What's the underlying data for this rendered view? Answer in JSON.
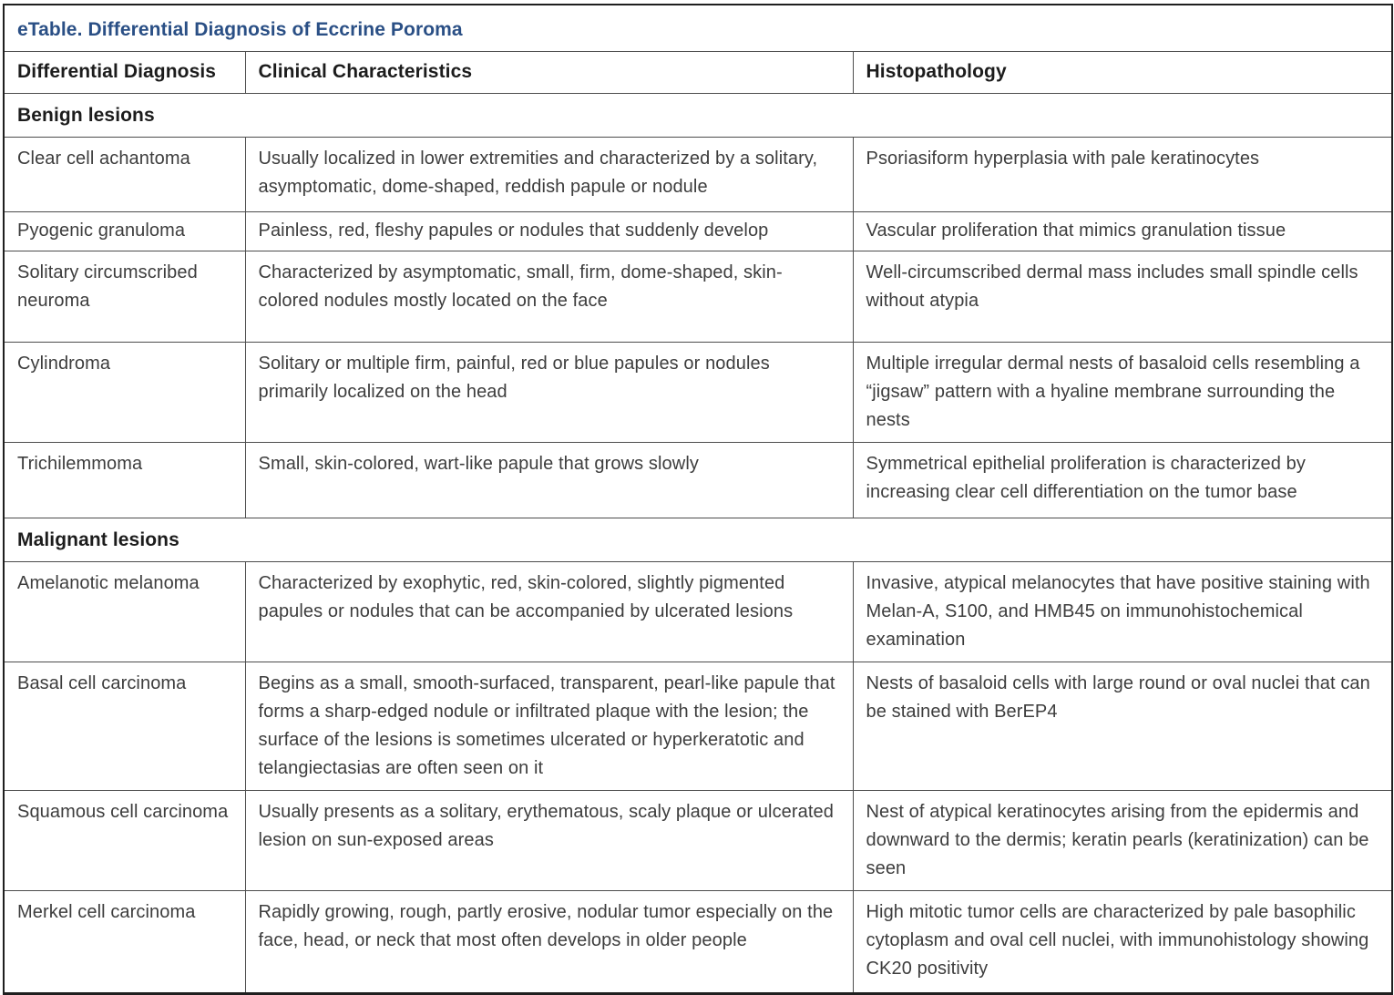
{
  "table": {
    "title": "eTable. Differential Diagnosis of Eccrine Poroma",
    "columns": {
      "diagnosis": "Differential Diagnosis",
      "clinical": "Clinical Characteristics",
      "histopathology": "Histopathology"
    },
    "sections": [
      {
        "header": "Benign lesions",
        "rows": [
          {
            "diagnosis": "Clear cell achantoma",
            "clinical": "Usually localized in lower extremities and characterized by a solitary, asymptomatic, dome-shaped, reddish papule or nodule",
            "histopathology": "Psoriasiform hyperplasia with pale keratinocytes"
          },
          {
            "diagnosis": "Pyogenic granuloma",
            "clinical": "Painless, red, fleshy papules or nodules that suddenly develop",
            "histopathology": "Vascular proliferation that mimics granulation tissue"
          },
          {
            "diagnosis": "Solitary circumscribed neuroma",
            "clinical": "Characterized by asymptomatic, small, firm, dome-shaped, skin-colored nodules mostly located on the face",
            "histopathology": "Well-circumscribed dermal mass includes small spindle cells without atypia"
          },
          {
            "diagnosis": "Cylindroma",
            "clinical": "Solitary or multiple firm, painful, red or blue papules or nodules primarily localized on the head",
            "histopathology": "Multiple irregular dermal nests of basaloid cells resembling a “jigsaw” pattern with a hyaline membrane surrounding the nests"
          },
          {
            "diagnosis": "Trichilemmoma",
            "clinical": "Small, skin-colored, wart-like papule that grows slowly",
            "histopathology": "Symmetrical epithelial proliferation is characterized by increasing clear cell differentiation on the tumor base"
          }
        ]
      },
      {
        "header": "Malignant lesions",
        "rows": [
          {
            "diagnosis": "Amelanotic melanoma",
            "clinical": "Characterized by exophytic, red, skin-colored, slightly pigmented papules or nodules that can be accompanied by ulcerated lesions",
            "histopathology": "Invasive, atypical melanocytes that have positive staining with Melan-A, S100, and HMB45 on immunohistochemical examination"
          },
          {
            "diagnosis": "Basal cell carcinoma",
            "clinical": "Begins as a small, smooth-surfaced, transparent, pearl-like papule that forms a sharp-edged nodule or infiltrated plaque with the lesion; the surface of the lesions is sometimes ulcerated or hyperkeratotic and telangiectasias are often seen on it",
            "histopathology": "Nests of basaloid cells with large round or oval nuclei that can be stained with BerEP4"
          },
          {
            "diagnosis": "Squamous cell carcinoma",
            "clinical": "Usually presents as a solitary, erythematous, scaly plaque or ulcerated lesion on sun-exposed areas",
            "histopathology": "Nest of atypical keratinocytes arising from the epidermis and downward to the dermis; keratin pearls (keratinization) can be seen"
          },
          {
            "diagnosis": "Merkel cell carcinoma",
            "clinical": "Rapidly growing, rough, partly erosive, nodular tumor especially on the face, head, or neck that most often develops in older people",
            "histopathology": "High mitotic tumor cells are characterized by pale basophilic cytoplasm and oval cell nuclei, with immunohistology showing CK20 positivity"
          }
        ]
      }
    ]
  },
  "colors": {
    "title_blue": "#2a4f85",
    "body_text": "#3d3d3d",
    "border_inner": "#4d4d4d",
    "border_outer": "#1f1f1f"
  }
}
